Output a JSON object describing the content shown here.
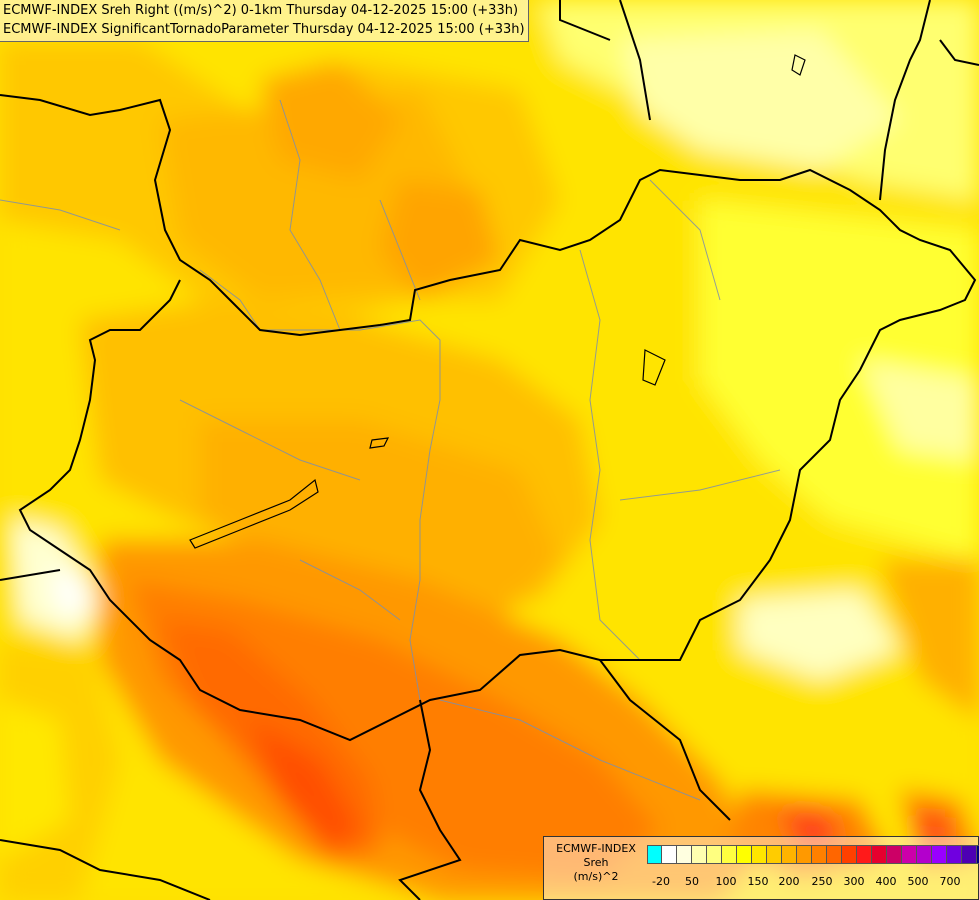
{
  "titles": {
    "line1": "ECMWF-INDEX Sreh Right ((m/s)^2) 0-1km Thursday 04-12-2025 15:00 (+33h)",
    "line2": "ECMWF-INDEX SignificantTornadoParameter Thursday 04-12-2025 15:00 (+33h)"
  },
  "legend": {
    "source": "ECMWF-INDEX",
    "variable": "Sreh",
    "unit": "(m/s)^2",
    "colors": [
      "#00ffff",
      "#ffffff",
      "#ffffe0",
      "#ffffb0",
      "#ffff80",
      "#ffff40",
      "#ffff00",
      "#ffe600",
      "#ffcc00",
      "#ffb300",
      "#ff9900",
      "#ff8000",
      "#ff6600",
      "#ff4000",
      "#ff1a1a",
      "#e6002e",
      "#cc0066",
      "#cc00aa",
      "#b300cc",
      "#9900ff",
      "#7000e0",
      "#4d00b3",
      "#000080"
    ],
    "ticks": [
      "-20",
      "50",
      "100",
      "150",
      "200",
      "250",
      "300",
      "400",
      "500",
      "700"
    ]
  }
}
